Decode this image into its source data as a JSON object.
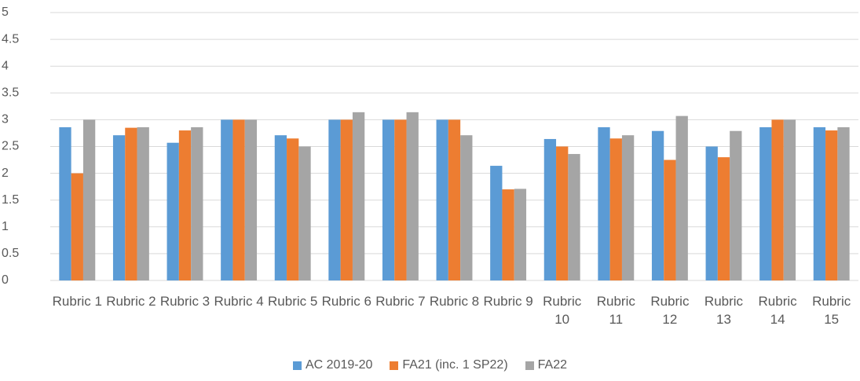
{
  "chart_data": {
    "type": "bar",
    "categories": [
      "Rubric 1",
      "Rubric 2",
      "Rubric 3",
      "Rubric 4",
      "Rubric 5",
      "Rubric 6",
      "Rubric 7",
      "Rubric 8",
      "Rubric 9",
      "Rubric 10",
      "Rubric 11",
      "Rubric 12",
      "Rubric 13",
      "Rubric 14",
      "Rubric 15"
    ],
    "series": [
      {
        "name": "AC 2019-20",
        "color": "#5b9bd5",
        "values": [
          2.86,
          2.71,
          2.57,
          3,
          2.71,
          3,
          3,
          3,
          2.14,
          2.64,
          2.86,
          2.79,
          2.5,
          2.86,
          2.86
        ]
      },
      {
        "name": "FA21 (inc. 1 SP22)",
        "color": "#ed7d31",
        "values": [
          2.0,
          2.85,
          2.8,
          3,
          2.65,
          3,
          3,
          3,
          1.7,
          2.5,
          2.65,
          2.25,
          2.3,
          3.0,
          2.8
        ]
      },
      {
        "name": "FA22",
        "color": "#a5a5a5",
        "values": [
          3.0,
          2.86,
          2.86,
          3,
          2.5,
          3.14,
          3.14,
          2.71,
          1.71,
          2.36,
          2.71,
          3.07,
          2.79,
          3.0,
          2.86
        ]
      }
    ],
    "ylim": [
      0,
      5
    ],
    "yticks": [
      0,
      0.5,
      1,
      1.5,
      2,
      2.5,
      3,
      3.5,
      4,
      4.5,
      5
    ],
    "grid": true,
    "legend": "bottom"
  }
}
